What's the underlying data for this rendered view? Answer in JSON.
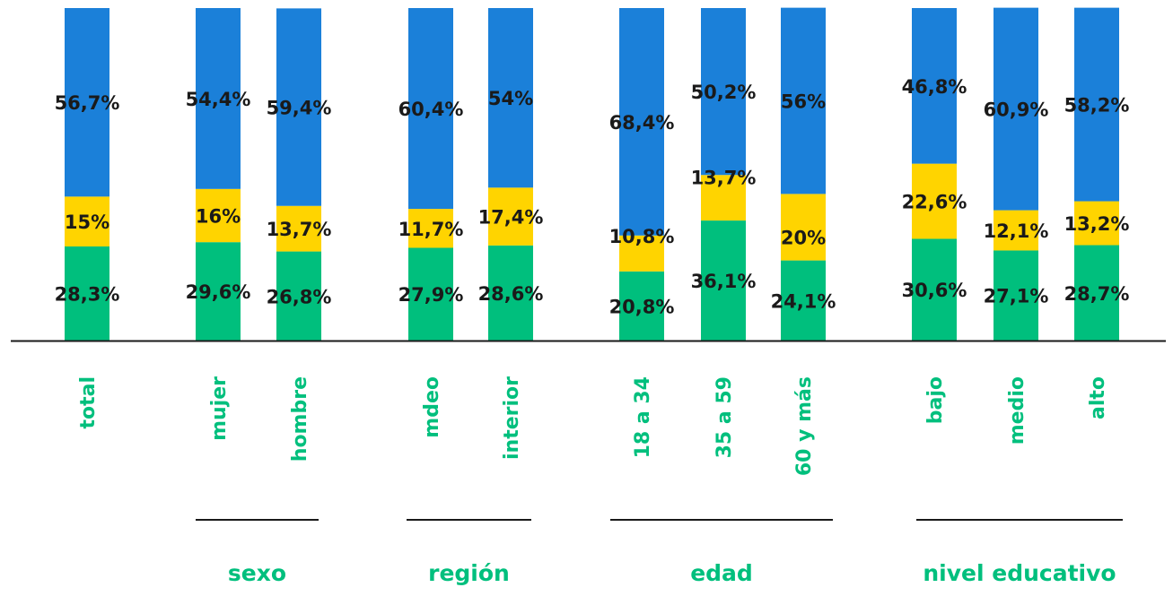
{
  "chart_data": {
    "type": "bar",
    "stacked": true,
    "percent_stacked": true,
    "categories": [
      "total",
      "mujer",
      "hombre",
      "mdeo",
      "interior",
      "18 a 34",
      "35 a 59",
      "60 y más",
      "bajo",
      "medio",
      "alto"
    ],
    "groups": [
      {
        "label": "",
        "members": [
          "total"
        ]
      },
      {
        "label": "sexo",
        "members": [
          "mujer",
          "hombre"
        ]
      },
      {
        "label": "región",
        "members": [
          "mdeo",
          "interior"
        ]
      },
      {
        "label": "edad",
        "members": [
          "18 a 34",
          "35 a 59",
          "60 y más"
        ]
      },
      {
        "label": "nivel educativo",
        "members": [
          "bajo",
          "medio",
          "alto"
        ]
      }
    ],
    "series": [
      {
        "color": "#00BF7D",
        "values": [
          28.3,
          29.6,
          26.8,
          27.9,
          28.6,
          20.8,
          36.1,
          24.1,
          30.6,
          27.1,
          28.7
        ],
        "labels": [
          "28,3%",
          "29,6%",
          "26,8%",
          "27,9%",
          "28,6%",
          "20,8%",
          "36,1%",
          "24,1%",
          "30,6%",
          "27,1%",
          "28,7%"
        ]
      },
      {
        "color": "#FFD400",
        "values": [
          15,
          16,
          13.7,
          11.7,
          17.4,
          10.8,
          13.7,
          20,
          22.6,
          12.1,
          13.2
        ],
        "labels": [
          "15%",
          "16%",
          "13,7%",
          "11,7%",
          "17,4%",
          "10,8%",
          "13,7%",
          "20%",
          "22,6%",
          "12,1%",
          "13,2%"
        ]
      },
      {
        "color": "#1B80D9",
        "values": [
          56.7,
          54.4,
          59.4,
          60.4,
          54,
          68.4,
          50.2,
          56,
          46.8,
          60.9,
          58.2
        ],
        "labels": [
          "56,7%",
          "54,4%",
          "59,4%",
          "60,4%",
          "54%",
          "68,4%",
          "50,2%",
          "56%",
          "46,8%",
          "60,9%",
          "58,2%"
        ]
      }
    ],
    "ylim": [
      0,
      100
    ],
    "category_label_color": "#00BF7D",
    "group_label_color": "#00BF7D",
    "legend": "none",
    "grid": false
  }
}
